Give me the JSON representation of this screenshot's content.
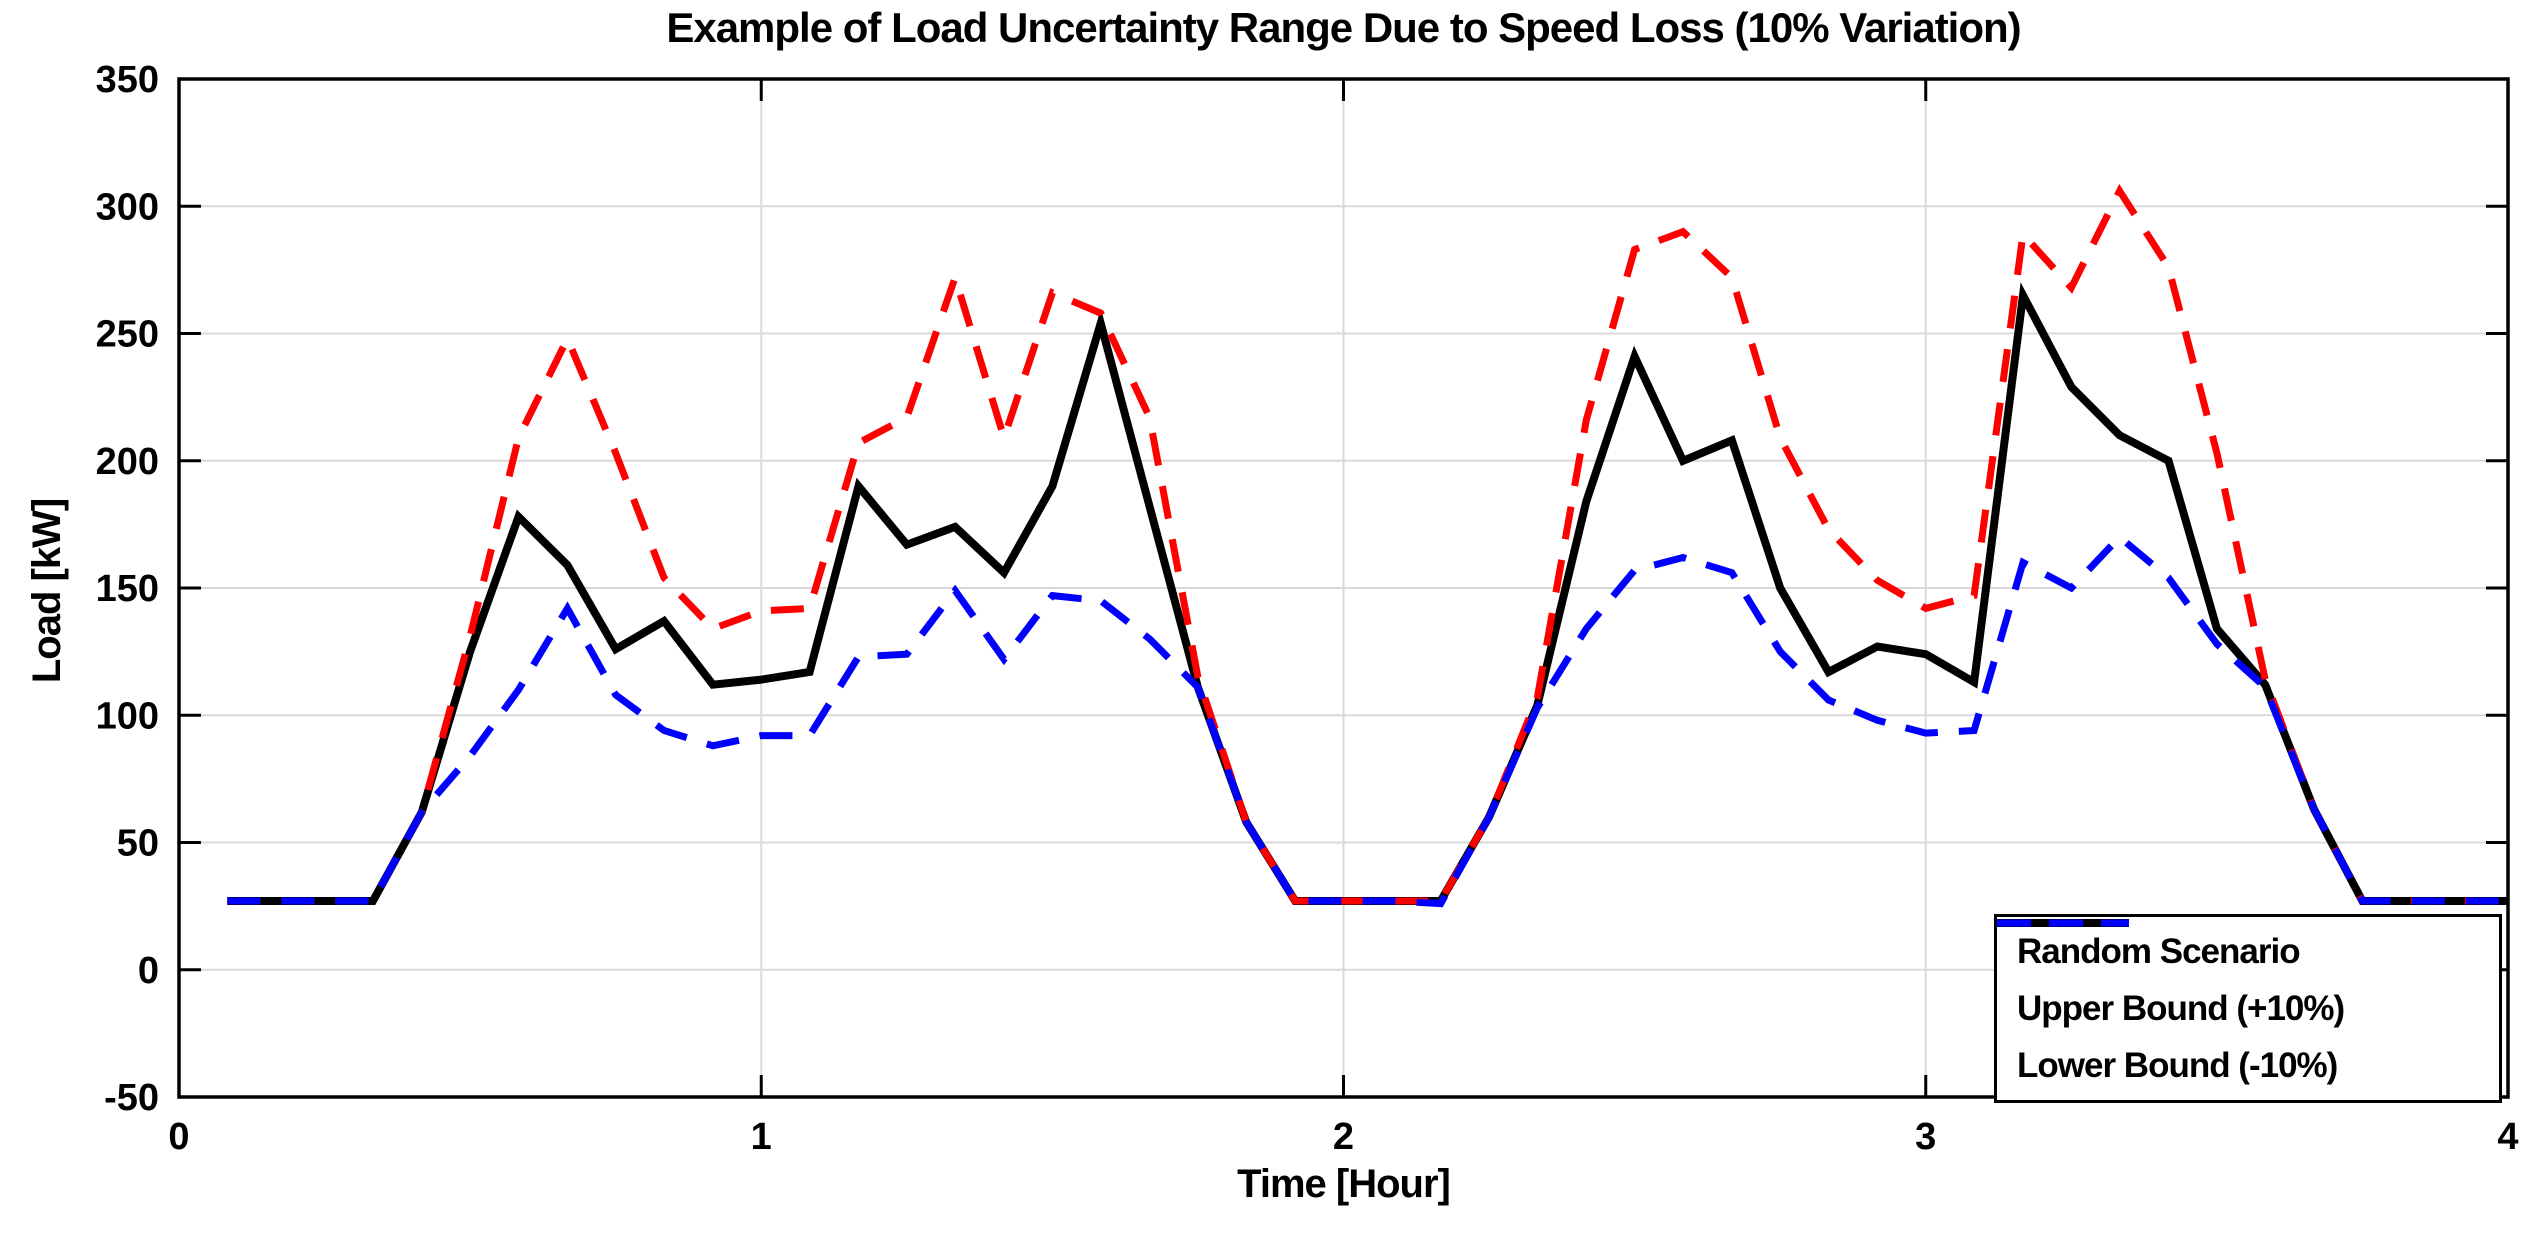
{
  "chart_data": {
    "type": "line",
    "title": "Example of Load Uncertainty Range Due to Speed Loss (10% Variation)",
    "xlabel": "Time [Hour]",
    "ylabel": "Load [kW]",
    "xlim": [
      0,
      4
    ],
    "ylim": [
      -50,
      350
    ],
    "xticks": [
      0,
      1,
      2,
      3,
      4
    ],
    "yticks": [
      -50,
      0,
      50,
      100,
      150,
      200,
      250,
      300,
      350
    ],
    "grid": true,
    "legend_position": "bottom-right",
    "axis_color": "#000000",
    "grid_color": "#d9d9d9",
    "x": [
      0.083,
      0.167,
      0.25,
      0.333,
      0.417,
      0.5,
      0.583,
      0.667,
      0.75,
      0.833,
      0.917,
      1.0,
      1.083,
      1.167,
      1.25,
      1.333,
      1.417,
      1.5,
      1.583,
      1.667,
      1.75,
      1.833,
      1.917,
      2.0,
      2.083,
      2.167,
      2.25,
      2.333,
      2.417,
      2.5,
      2.583,
      2.667,
      2.75,
      2.833,
      2.917,
      3.0,
      3.083,
      3.167,
      3.25,
      3.333,
      3.417,
      3.5,
      3.583,
      3.667,
      3.75,
      3.833,
      3.917,
      4.0
    ],
    "series": [
      {
        "name": "Random Scenario",
        "color": "#000000",
        "line_style": "solid",
        "values": [
          27,
          27,
          27,
          27,
          62,
          125,
          178,
          159,
          126,
          137,
          112,
          114,
          117,
          190,
          167,
          174,
          156,
          190,
          254,
          182,
          111,
          58,
          27,
          27,
          27,
          27,
          60,
          104,
          184,
          241,
          200,
          208,
          150,
          117,
          127,
          124,
          113,
          265,
          229,
          210,
          200,
          134,
          112,
          63,
          27,
          27,
          27,
          27
        ]
      },
      {
        "name": "Upper Bound (+10%)",
        "color": "#FF0000",
        "line_style": "dashed",
        "values": [
          27,
          27,
          27,
          27,
          62,
          131,
          209,
          248,
          203,
          154,
          134,
          141,
          142,
          207,
          217,
          272,
          209,
          266,
          258,
          217,
          115,
          58,
          27,
          27,
          27,
          27,
          60,
          107,
          216,
          283,
          290,
          272,
          209,
          173,
          153,
          142,
          147,
          289,
          268,
          306,
          276,
          203,
          114,
          63,
          27,
          27,
          27,
          27
        ]
      },
      {
        "name": "Lower Bound (-10%)",
        "color": "#0000FF",
        "line_style": "dashed",
        "values": [
          27,
          27,
          27,
          27,
          62,
          84,
          110,
          142,
          108,
          94,
          88,
          92,
          92,
          123,
          124,
          149,
          122,
          147,
          145,
          130,
          111,
          58,
          27,
          27,
          27,
          26,
          60,
          103,
          134,
          157,
          162,
          156,
          125,
          106,
          98,
          93,
          94,
          160,
          150,
          170,
          154,
          128,
          111,
          63,
          27,
          27,
          27,
          27
        ]
      }
    ]
  }
}
